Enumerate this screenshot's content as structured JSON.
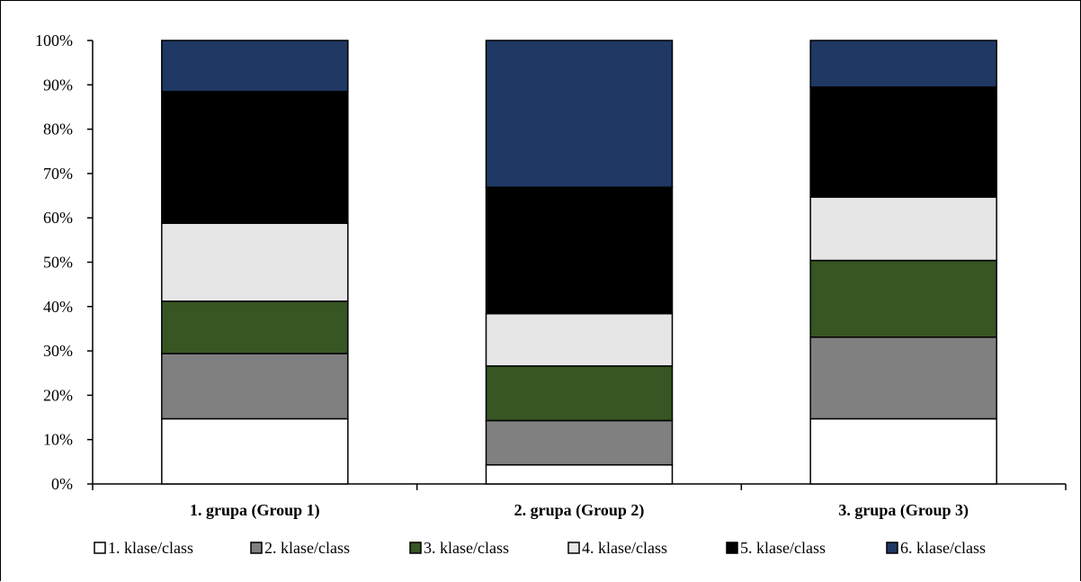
{
  "chart_data": {
    "type": "bar",
    "stacked": true,
    "percent": true,
    "categories": [
      "1. grupa (Group 1)",
      "2. grupa (Group 2)",
      "3. grupa (Group 3)"
    ],
    "ylim": [
      0,
      100
    ],
    "y_ticks": [
      "0%",
      "10%",
      "20%",
      "30%",
      "40%",
      "50%",
      "60%",
      "70%",
      "80%",
      "90%",
      "100%"
    ],
    "grid": false,
    "legend_position": "bottom",
    "series": [
      {
        "name": "1. klase/class",
        "color": "#ffffff",
        "values": [
          14.7,
          4.3,
          14.7
        ]
      },
      {
        "name": "2. klase/class",
        "color": "#808080",
        "values": [
          14.7,
          10.0,
          18.4
        ]
      },
      {
        "name": "3. klase/class",
        "color": "#375623",
        "values": [
          11.8,
          12.3,
          17.3
        ]
      },
      {
        "name": "4. klase/class",
        "color": "#e6e6e6",
        "values": [
          17.6,
          11.8,
          14.3
        ]
      },
      {
        "name": "5. klase/class",
        "color": "#000000",
        "values": [
          29.7,
          28.5,
          24.8
        ]
      },
      {
        "name": "6. klase/class",
        "color": "#1f3864",
        "values": [
          11.5,
          33.1,
          10.5
        ]
      }
    ]
  }
}
